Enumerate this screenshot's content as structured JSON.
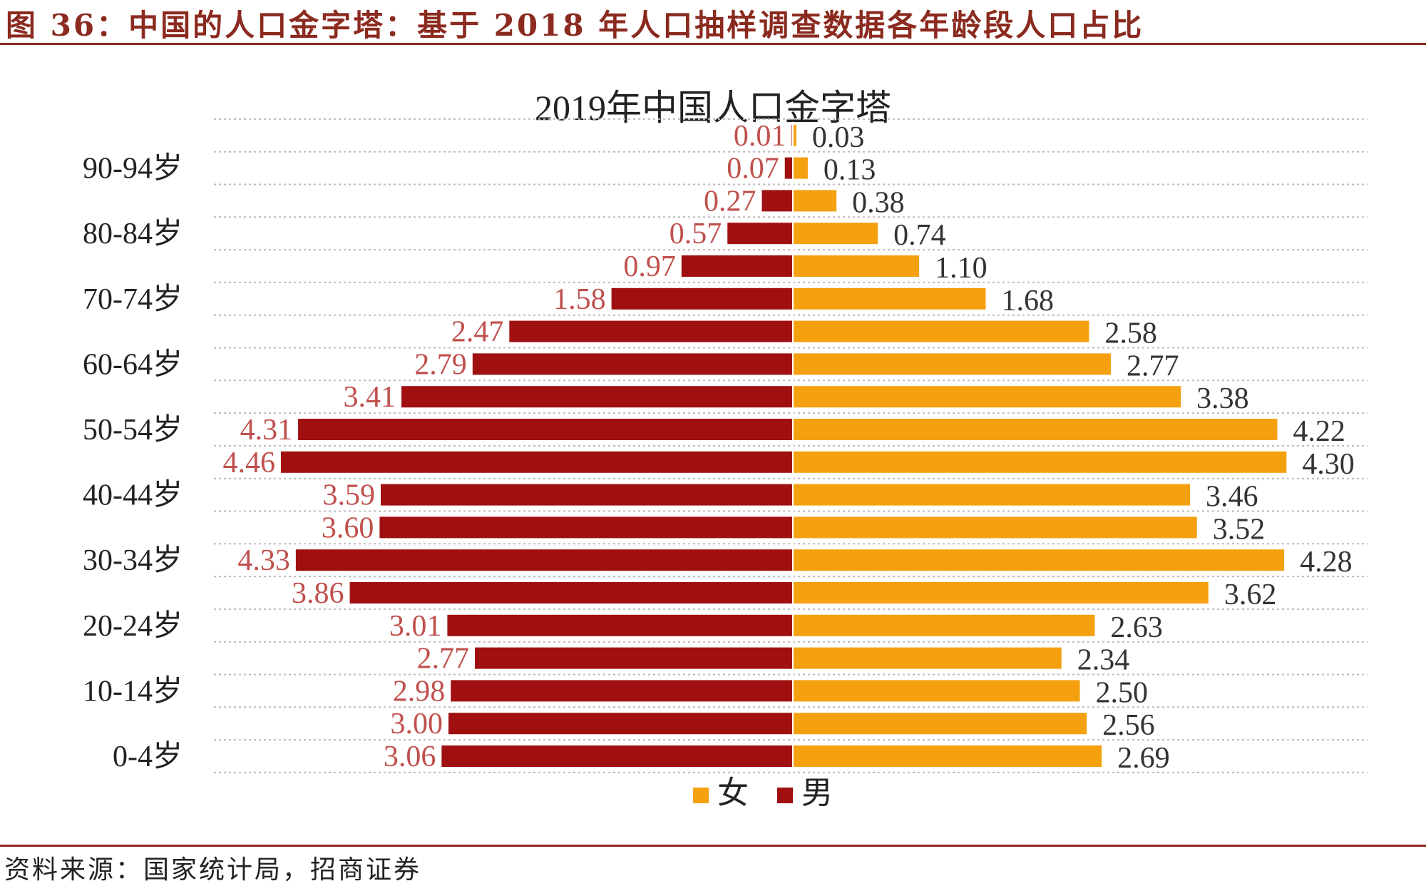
{
  "figure": {
    "title": "图 36：中国的人口金字塔：基于 2018 年人口抽样调查数据各年龄段人口占比",
    "source": "资料来源：国家统计局，招商证券"
  },
  "chart_data": {
    "type": "bar",
    "orientation": "horizontal",
    "title": "2019年中国人口金字塔",
    "categories": [
      "0-4岁",
      "",
      "10-14岁",
      "",
      "20-24岁",
      "",
      "30-34岁",
      "",
      "40-44岁",
      "",
      "50-54岁",
      "",
      "60-64岁",
      "",
      "70-74岁",
      "",
      "80-84岁",
      "",
      "90-94岁",
      ""
    ],
    "series": [
      {
        "name": "男",
        "color": "#a01010",
        "side": "left",
        "values": [
          3.06,
          3.0,
          2.98,
          2.77,
          3.01,
          3.86,
          4.33,
          3.6,
          3.59,
          4.46,
          4.31,
          3.41,
          2.79,
          2.47,
          1.58,
          0.97,
          0.57,
          0.27,
          0.07,
          0.01
        ],
        "labels": [
          "3.06",
          "3.00",
          "2.98",
          "2.77",
          "3.01",
          "3.86",
          "4.33",
          "3.60",
          "3.59",
          "4.46",
          "4.31",
          "3.41",
          "2.79",
          "2.47",
          "1.58",
          "0.97",
          "0.57",
          "0.27",
          "0.07",
          "0.01"
        ]
      },
      {
        "name": "女",
        "color": "#f5a00f",
        "side": "right",
        "values": [
          2.69,
          2.56,
          2.5,
          2.34,
          2.63,
          3.62,
          4.28,
          3.52,
          3.46,
          4.3,
          4.22,
          3.38,
          2.77,
          2.58,
          1.68,
          1.1,
          0.74,
          0.38,
          0.13,
          0.03
        ],
        "labels": [
          "2.69",
          "2.56",
          "2.50",
          "2.34",
          "2.63",
          "3.62",
          "4.28",
          "3.52",
          "3.46",
          "4.30",
          "4.22",
          "3.38",
          "2.77",
          "2.58",
          "1.68",
          "1.10",
          "0.74",
          "0.38",
          "0.13",
          "0.03"
        ]
      }
    ],
    "legend": {
      "position": "bottom-center",
      "order": [
        "女",
        "男"
      ]
    },
    "grid": true,
    "colors": {
      "male_label": "#c0504d",
      "female_label": "#333333",
      "grid": "#bbbbbb"
    }
  }
}
